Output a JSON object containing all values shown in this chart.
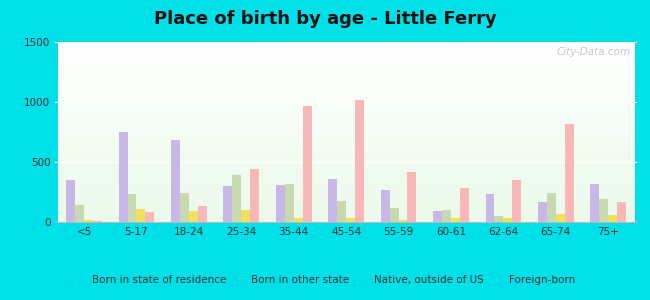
{
  "title": "Place of birth by age - Little Ferry",
  "categories": [
    "<5",
    "5-17",
    "18-24",
    "25-34",
    "35-44",
    "45-54",
    "55-59",
    "60-61",
    "62-64",
    "65-74",
    "75+"
  ],
  "series": {
    "Born in state of residence": [
      350,
      750,
      680,
      300,
      310,
      360,
      270,
      90,
      230,
      170,
      320
    ],
    "Born in other state": [
      140,
      230,
      240,
      390,
      320,
      175,
      120,
      100,
      50,
      240,
      195
    ],
    "Native, outside of US": [
      20,
      110,
      90,
      100,
      35,
      30,
      20,
      30,
      30,
      65,
      55
    ],
    "Foreign-born": [
      10,
      85,
      130,
      440,
      970,
      1020,
      420,
      280,
      350,
      820,
      170
    ]
  },
  "colors": {
    "Born in state of residence": "#c8b8e8",
    "Born in other state": "#c8d8b0",
    "Native, outside of US": "#f0e060",
    "Foreign-born": "#f8b8b8"
  },
  "ylim": [
    0,
    1500
  ],
  "yticks": [
    0,
    500,
    1000,
    1500
  ],
  "outer_background": "#00e0e8",
  "grid_color": "#ffffff",
  "title_fontsize": 13
}
